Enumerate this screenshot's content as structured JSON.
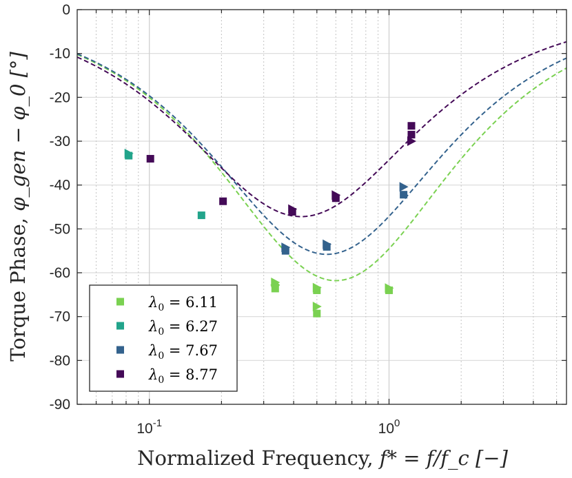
{
  "chart_data": {
    "type": "scatter",
    "xscale": "log",
    "xlim": [
      0.05,
      5.5
    ],
    "ylim": [
      -90,
      0
    ],
    "xlabel_prefix": "Normalized Frequency, ",
    "xlabel_math": "f* = f/f_c [−]",
    "ylabel_prefix": "Torque Phase, ",
    "ylabel_math": "φ_gen − φ_0 [°]",
    "y_ticks": [
      0,
      -10,
      -20,
      -30,
      -40,
      -50,
      -60,
      -70,
      -80,
      -90
    ],
    "y_tick_labels": [
      "0",
      "-10",
      "-20",
      "-30",
      "-40",
      "-50",
      "-60",
      "-70",
      "-80",
      "-90"
    ],
    "x_ticks": [
      0.1,
      1
    ],
    "x_tick_labels": [
      {
        "base": "10",
        "exp": "-1"
      },
      {
        "base": "10",
        "exp": "0"
      }
    ],
    "grid": true,
    "legend_position": "bottom-left",
    "series": [
      {
        "name": "λ0 = 6.11",
        "greek": "λ",
        "sub": "0",
        "value": "6.11",
        "color": "#7ad151",
        "model": {
          "amplitude": 61.8,
          "f_peak": 0.6
        },
        "points": [
          {
            "x": 0.335,
            "y": -62.2,
            "m": "triangle-right"
          },
          {
            "x": 0.335,
            "y": -63.6,
            "m": "square"
          },
          {
            "x": 0.335,
            "y": -62.8,
            "m": "diamond"
          },
          {
            "x": 0.5,
            "y": -63.4,
            "m": "triangle-right"
          },
          {
            "x": 0.5,
            "y": -64.0,
            "m": "square"
          },
          {
            "x": 0.5,
            "y": -67.7,
            "m": "triangle-right"
          },
          {
            "x": 0.5,
            "y": -69.3,
            "m": "square"
          },
          {
            "x": 1.0,
            "y": -63.5,
            "m": "triangle-right"
          },
          {
            "x": 1.0,
            "y": -64.0,
            "m": "square"
          }
        ]
      },
      {
        "name": "λ0 = 6.27",
        "greek": "λ",
        "sub": "0",
        "value": "6.27",
        "color": "#22a48b",
        "model": null,
        "points": [
          {
            "x": 0.082,
            "y": -33.3,
            "m": "square"
          },
          {
            "x": 0.082,
            "y": -32.8,
            "m": "triangle-right"
          },
          {
            "x": 0.165,
            "y": -46.9,
            "m": "square"
          }
        ]
      },
      {
        "name": "λ0 = 7.67",
        "greek": "λ",
        "sub": "0",
        "value": "7.67",
        "color": "#33628d",
        "model": {
          "amplitude": 55.8,
          "f_peak": 0.55
        },
        "points": [
          {
            "x": 0.37,
            "y": -54.2,
            "m": "triangle-right"
          },
          {
            "x": 0.37,
            "y": -55.0,
            "m": "square"
          },
          {
            "x": 0.55,
            "y": -53.5,
            "m": "triangle-right"
          },
          {
            "x": 0.55,
            "y": -54.1,
            "m": "square"
          },
          {
            "x": 1.15,
            "y": -40.4,
            "m": "triangle-right"
          },
          {
            "x": 1.15,
            "y": -42.2,
            "m": "square"
          }
        ]
      },
      {
        "name": "λ0 = 8.77",
        "greek": "λ",
        "sub": "0",
        "value": "8.77",
        "color": "#440a57",
        "model": {
          "amplitude": 47.2,
          "f_peak": 0.43
        },
        "points": [
          {
            "x": 0.101,
            "y": -34.0,
            "m": "square"
          },
          {
            "x": 0.203,
            "y": -43.7,
            "m": "square"
          },
          {
            "x": 0.395,
            "y": -45.5,
            "m": "triangle-right"
          },
          {
            "x": 0.395,
            "y": -46.1,
            "m": "square"
          },
          {
            "x": 0.6,
            "y": -42.3,
            "m": "triangle-right"
          },
          {
            "x": 0.6,
            "y": -43.0,
            "m": "square"
          },
          {
            "x": 1.24,
            "y": -26.5,
            "m": "square"
          },
          {
            "x": 1.24,
            "y": -28.5,
            "m": "square"
          },
          {
            "x": 1.24,
            "y": -30.0,
            "m": "triangle-right"
          }
        ]
      }
    ],
    "model_curve_order": [
      "λ0 = 8.77",
      "λ0 = 7.67",
      "λ0 = 6.11"
    ]
  }
}
